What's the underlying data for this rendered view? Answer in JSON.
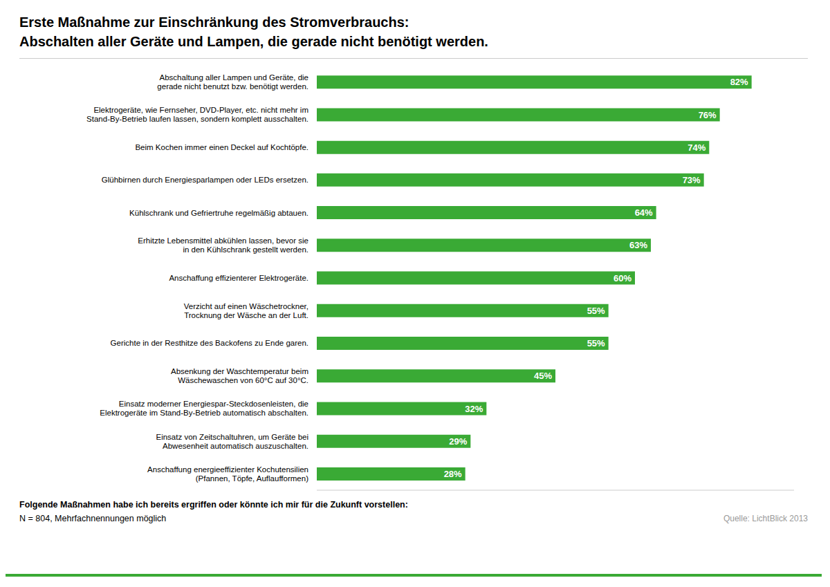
{
  "chart_data": {
    "type": "bar",
    "orientation": "horizontal",
    "title": "Erste Maßnahme zur Einschränkung des Stromverbrauchs:",
    "subtitle": "Abschalten aller Geräte und Lampen, die gerade nicht benötigt werden.",
    "categories": [
      "Anschaffung energieeffizienter Kochutensilien\n(Pfannen, Töpfe, Auflaufformen)",
      "Einsatz von Zeitschaltuhren, um Geräte bei\nAbwesenheit automatisch auszuschalten.",
      "Einsatz moderner Energiespar-Steckdosenleisten, die\nElektrogeräte im Stand-By-Betrieb automatisch abschalten.",
      "Absenkung der Waschtemperatur beim\nWäschewaschen von 60°C auf 30°C.",
      "Gerichte in der Resthitze des Backofens zu Ende garen.",
      "Verzicht auf einen Wäschetrockner,\nTrocknung der Wäsche an der Luft.",
      "Anschaffung effizienterer Elektrogeräte.",
      "Erhitzte Lebensmittel abkühlen lassen, bevor sie\nin den Kühlschrank gestellt werden.",
      "Kühlschrank und Gefriertruhe regelmäßig abtauen.",
      "Glühbirnen durch Energiesparlampen oder LEDs ersetzen.",
      "Beim Kochen immer einen Deckel auf Kochtöpfe.",
      "Elektrogeräte, wie Fernseher, DVD-Player, etc. nicht mehr im\nStand-By-Betrieb laufen lassen, sondern komplett ausschalten.",
      "Abschaltung aller Lampen und Geräte, die\ngerade nicht benutzt bzw. benötigt werden."
    ],
    "values": [
      28,
      29,
      32,
      45,
      55,
      55,
      60,
      63,
      64,
      73,
      74,
      76,
      82
    ],
    "value_labels": [
      "28%",
      "29%",
      "32%",
      "45%",
      "55%",
      "55%",
      "60%",
      "63%",
      "64%",
      "73%",
      "74%",
      "76%",
      "82%"
    ],
    "data_labels": true,
    "color": "#3aaa35",
    "xlim": [
      0,
      90
    ],
    "tick_labels": "y",
    "grid": false,
    "annotations": [
      "Folgende Maßnahmen habe ich bereits ergriffen oder könnte ich mir für die Zukunft vorstellen",
      ":",
      "N = 804, Mehrfachnennungen möglich",
      "Quelle: LichtBlick 2013"
    ]
  }
}
